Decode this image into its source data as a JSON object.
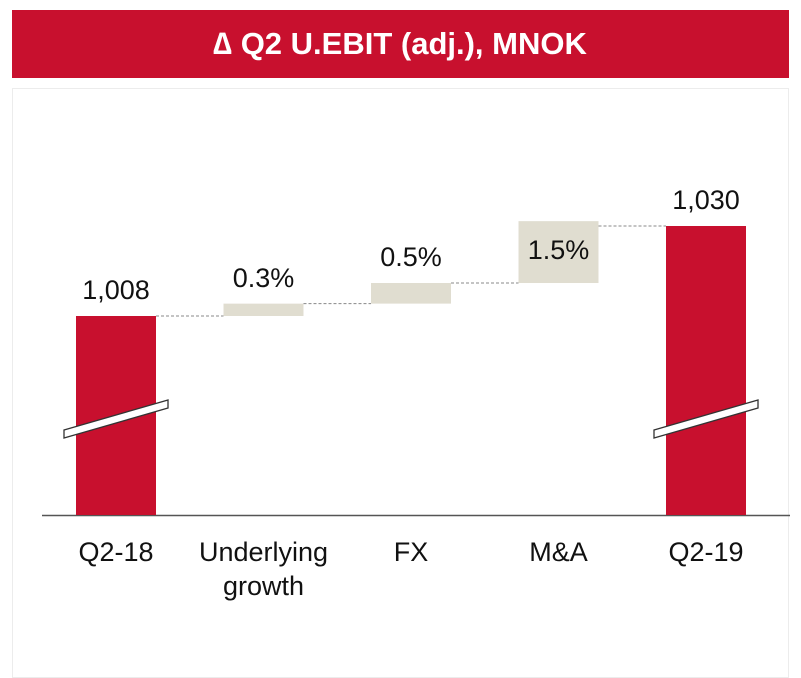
{
  "chart_data": {
    "type": "waterfall",
    "title": "∆ Q2 U.EBIT (adj.), MNOK",
    "categories": [
      "Q2-18",
      "Underlying growth",
      "FX",
      "M&A",
      "Q2-19"
    ],
    "values": [
      1008,
      0.3,
      0.5,
      1.5,
      1030
    ],
    "value_labels": [
      "1,008",
      "0.3%",
      "0.5%",
      "1.5%",
      "1,030"
    ],
    "total_color": "#c8102e",
    "change_color": "#e0ddd0"
  }
}
